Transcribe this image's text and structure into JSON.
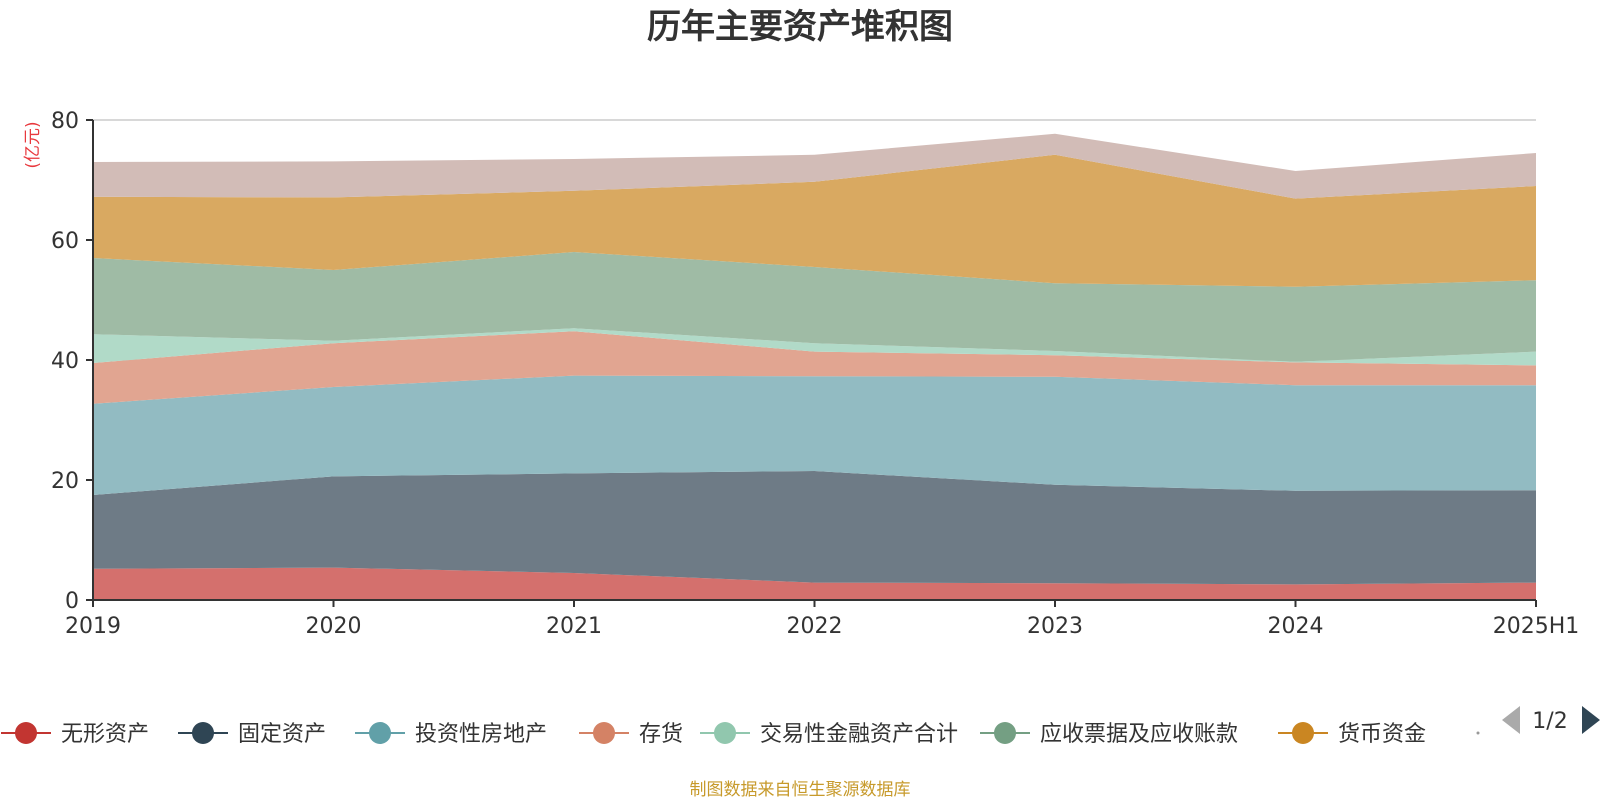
{
  "chart_data": {
    "type": "area",
    "stacked": true,
    "title": "历年主要资产堆积图",
    "y_unit": "(亿元)",
    "x": [
      "2019",
      "2020",
      "2021",
      "2022",
      "2023",
      "2024",
      "2025H1"
    ],
    "ylim": [
      0,
      80
    ],
    "yticks": [
      0,
      20,
      40,
      60,
      80
    ],
    "grid": true,
    "legend_position": "bottom",
    "series": [
      {
        "name": "无形资产",
        "values": [
          5.2,
          5.4,
          4.5,
          2.9,
          2.8,
          2.6,
          2.9
        ]
      },
      {
        "name": "固定资产",
        "values": [
          12.3,
          15.2,
          16.6,
          18.6,
          16.4,
          15.6,
          15.4
        ]
      },
      {
        "name": "投资性房地产",
        "values": [
          15.2,
          14.9,
          16.3,
          15.8,
          18.0,
          17.6,
          17.5
        ]
      },
      {
        "name": "存货",
        "values": [
          6.8,
          7.3,
          7.4,
          4.1,
          3.6,
          3.8,
          3.3
        ]
      },
      {
        "name": "交易性金融资产合计",
        "values": [
          4.8,
          0.4,
          0.5,
          1.4,
          0.7,
          0.1,
          2.3
        ]
      },
      {
        "name": "应收票据及应收账款",
        "values": [
          12.7,
          11.8,
          12.7,
          12.7,
          11.3,
          12.5,
          11.9
        ]
      },
      {
        "name": "货币资金",
        "values": [
          10.2,
          12.1,
          10.2,
          14.2,
          21.4,
          14.7,
          15.7
        ]
      },
      {
        "name": "",
        "values": [
          5.8,
          6.0,
          5.3,
          4.5,
          3.5,
          4.6,
          5.5
        ]
      }
    ],
    "colors": [
      "#d4706d",
      "#6e7b86",
      "#92bbc2",
      "#e1a591",
      "#b1dac8",
      "#9fbba5",
      "#d9a961",
      "#d2bcb7"
    ],
    "legend_markers": [
      "#c23531",
      "#2f4554",
      "#61a0a8",
      "#d48265",
      "#91c7ae",
      "#749f83",
      "#ca8622"
    ]
  },
  "legend_pager": "1/2",
  "source_text": "制图数据来自恒生聚源数据库"
}
